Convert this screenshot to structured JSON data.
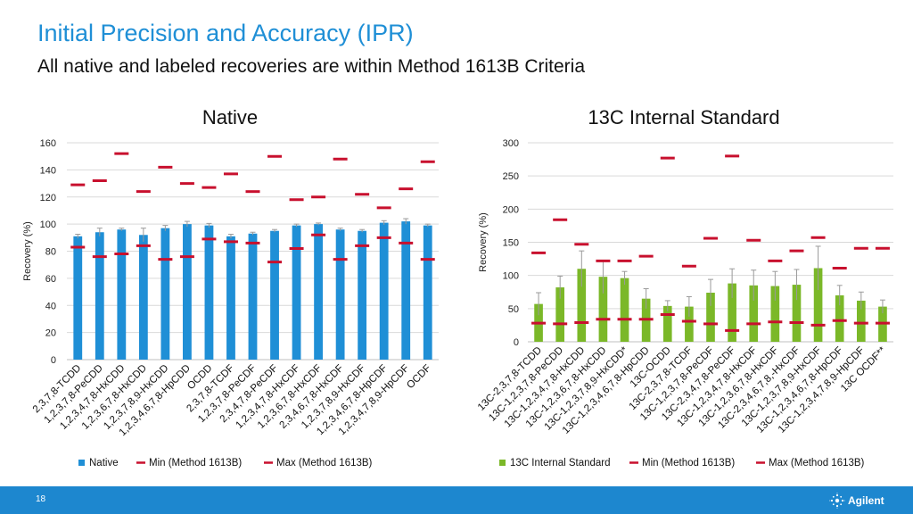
{
  "title": "Initial Precision and Accuracy (IPR)",
  "subtitle": "All native and labeled recoveries are within Method 1613B Criteria",
  "page_number": "18",
  "logo_text": "Agilent",
  "colors": {
    "native_bar": "#1f8fd6",
    "is_bar": "#7bb828",
    "criteria": "#c8102e",
    "title": "#1f8fd6",
    "footer": "#1d87cf"
  },
  "chart_data": [
    {
      "type": "bar",
      "title": "Native",
      "ylabel": "Recovery (%)",
      "ylim": [
        0,
        160
      ],
      "yticks": [
        0,
        20,
        40,
        60,
        80,
        100,
        120,
        140,
        160
      ],
      "categories": [
        "2,3,7,8-TCDD",
        "1,2,3,7,8-PeCDD",
        "1,2,3,4,7,8-HxCDD",
        "1,2,3,6,7,8-HxCDD",
        "1,2,3,7,8,9-HxCDD",
        "1,2,3,4,6,7,8-HpCDD",
        "OCDD",
        "2,3,7,8-TCDF",
        "1,2,3,7,8-PeCDF",
        "2,3,4,7,8-PeCDF",
        "1,2,3,4,7,8-HxCDF",
        "1,2,3,6,7,8-HxCDF",
        "2,3,4,6,7,8-HxCDF",
        "1,2,3,7,8,9-HxCDF",
        "1,2,3,4,6,7,8-HpCDF",
        "1,2,3,4,7,8,9-HpCDF",
        "OCDF"
      ],
      "series": [
        {
          "name": "Native",
          "kind": "bar",
          "values": [
            91,
            94,
            96,
            92,
            97,
            100,
            99,
            91,
            93,
            95,
            99,
            100,
            96,
            95,
            101,
            102,
            99
          ],
          "errors": [
            1.5,
            3,
            1,
            5,
            2,
            2,
            1.5,
            1.5,
            1,
            1,
            1,
            0.8,
            1,
            1,
            1.5,
            2,
            1
          ]
        },
        {
          "name": "Min (Method 1613B)",
          "kind": "dash",
          "values": [
            83,
            76,
            78,
            84,
            74,
            76,
            89,
            87,
            86,
            72,
            82,
            92,
            74,
            84,
            90,
            86,
            74
          ]
        },
        {
          "name": "Max (Method 1613B)",
          "kind": "dash",
          "values": [
            129,
            132,
            152,
            124,
            142,
            130,
            127,
            137,
            124,
            150,
            118,
            120,
            148,
            122,
            112,
            126,
            146
          ]
        }
      ],
      "legend_position": "bottom"
    },
    {
      "type": "bar",
      "title": "13C Internal Standard",
      "ylabel": "Recovery (%)",
      "ylim": [
        0,
        300
      ],
      "yticks": [
        0,
        50,
        100,
        150,
        200,
        250,
        300
      ],
      "categories": [
        "13C-2,3,7,8-TCDD",
        "13C-1,2,3,7,8-PeCDD",
        "13C-1,2,3,4,7,8-HxCDD",
        "13C-1,2,3,6,7,8-HxCDD",
        "13C-1,2,3,7,8,9-HxCDD*",
        "13C-1,2,3,4,6,7,8-HpCDD",
        "13C-OCDD",
        "13C-2,3,7,8-TCDF",
        "13C-1,2,3,7,8-PeCDF",
        "13C-2,3,4,7,8-PeCDF",
        "13C-1,2,3,4,7,8-HxCDF",
        "13C-1,2,3,6,7,8-HxCDF",
        "13C-2,3,4,6,7,8,-HxCDF",
        "13C-1,2,3,7,8,9-HxCDF",
        "13C-1,2,3,4,6,7,8-HpCDF",
        "13C-1,2,3,4,7,8,9-HpCDF",
        "13C OCDF**"
      ],
      "series": [
        {
          "name": "13C Internal Standard",
          "kind": "bar",
          "values": [
            57,
            82,
            110,
            98,
            96,
            65,
            54,
            53,
            74,
            88,
            85,
            84,
            86,
            111,
            70,
            62,
            53
          ],
          "errors": [
            17,
            17,
            27,
            25,
            10,
            15,
            8,
            15,
            20,
            22,
            23,
            22,
            23,
            33,
            15,
            13,
            10
          ]
        },
        {
          "name": "Min (Method 1613B)",
          "kind": "dash",
          "values": [
            28,
            27,
            29,
            34,
            34,
            34,
            41,
            31,
            27,
            17,
            27,
            30,
            29,
            25,
            32,
            28,
            28
          ]
        },
        {
          "name": "Max (Method 1613B)",
          "kind": "dash",
          "values": [
            134,
            184,
            147,
            122,
            122,
            129,
            277,
            114,
            156,
            280,
            153,
            122,
            137,
            157,
            111,
            141,
            141
          ]
        }
      ],
      "legend_position": "bottom"
    }
  ]
}
